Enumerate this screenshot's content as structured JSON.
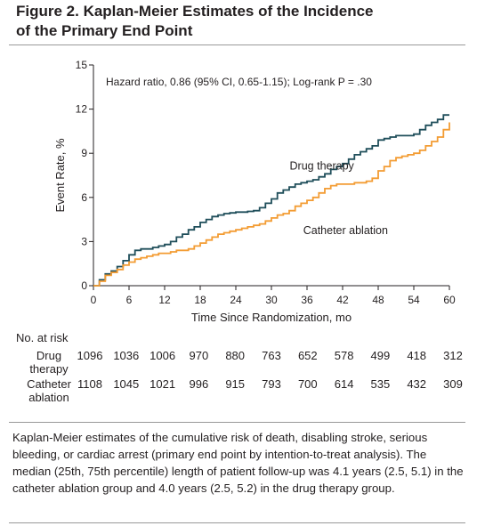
{
  "figure": {
    "title_line1": "Figure 2. Kaplan-Meier Estimates of the Incidence",
    "title_line2": "of the Primary End Point"
  },
  "chart_data": {
    "type": "line",
    "title": "",
    "xlabel": "Time Since Randomization, mo",
    "ylabel": "Event Rate, %",
    "xlim": [
      0,
      60
    ],
    "ylim": [
      0,
      15
    ],
    "x_ticks": [
      0,
      6,
      12,
      18,
      24,
      30,
      36,
      42,
      48,
      54,
      60
    ],
    "y_ticks": [
      0,
      3,
      6,
      9,
      12,
      15
    ],
    "annotation": "Hazard ratio, 0.86 (95% CI, 0.65-1.15); Log-rank P = .30",
    "grid": false,
    "series": [
      {
        "name": "Drug therapy",
        "color": "#1f4e5a",
        "x": [
          0,
          1,
          2,
          3,
          4,
          5,
          6,
          7,
          8,
          9,
          10,
          11,
          12,
          13,
          14,
          15,
          16,
          17,
          18,
          19,
          20,
          21,
          22,
          23,
          24,
          25,
          26,
          27,
          28,
          29,
          30,
          31,
          32,
          33,
          34,
          35,
          36,
          37,
          38,
          39,
          40,
          41,
          42,
          43,
          44,
          45,
          46,
          47,
          48,
          49,
          50,
          51,
          52,
          53,
          54,
          55,
          56,
          57,
          58,
          59,
          60
        ],
        "values": [
          0,
          0.4,
          0.8,
          1.0,
          1.3,
          1.7,
          2.1,
          2.4,
          2.5,
          2.5,
          2.6,
          2.7,
          2.8,
          3.0,
          3.3,
          3.5,
          3.8,
          4.0,
          4.3,
          4.5,
          4.7,
          4.8,
          4.9,
          4.95,
          5.0,
          5.0,
          5.05,
          5.1,
          5.3,
          5.6,
          5.9,
          6.3,
          6.5,
          6.7,
          6.9,
          7.0,
          7.1,
          7.2,
          7.4,
          7.6,
          7.9,
          8.1,
          8.3,
          8.6,
          8.9,
          9.1,
          9.3,
          9.5,
          9.9,
          10.0,
          10.1,
          10.2,
          10.2,
          10.2,
          10.3,
          10.6,
          10.9,
          11.1,
          11.3,
          11.6,
          11.6
        ]
      },
      {
        "name": "Catheter ablation",
        "color": "#f39c33",
        "x": [
          0,
          1,
          2,
          3,
          4,
          5,
          6,
          7,
          8,
          9,
          10,
          11,
          12,
          13,
          14,
          15,
          16,
          17,
          18,
          19,
          20,
          21,
          22,
          23,
          24,
          25,
          26,
          27,
          28,
          29,
          30,
          31,
          32,
          33,
          34,
          35,
          36,
          37,
          38,
          39,
          40,
          41,
          42,
          43,
          44,
          45,
          46,
          47,
          48,
          49,
          50,
          51,
          52,
          53,
          54,
          55,
          56,
          57,
          58,
          59,
          60
        ],
        "values": [
          0,
          0.3,
          0.7,
          0.9,
          1.1,
          1.4,
          1.6,
          1.8,
          1.9,
          2.0,
          2.1,
          2.2,
          2.2,
          2.3,
          2.4,
          2.4,
          2.5,
          2.7,
          2.9,
          3.1,
          3.3,
          3.5,
          3.6,
          3.7,
          3.8,
          3.9,
          4.0,
          4.1,
          4.2,
          4.4,
          4.6,
          4.8,
          4.9,
          5.1,
          5.4,
          5.6,
          5.8,
          6.0,
          6.3,
          6.6,
          6.8,
          6.9,
          6.9,
          6.9,
          7.0,
          7.0,
          7.1,
          7.3,
          7.8,
          8.1,
          8.5,
          8.7,
          8.8,
          8.9,
          9.0,
          9.2,
          9.5,
          9.8,
          10.1,
          10.6,
          11.1
        ]
      }
    ],
    "line_labels": [
      {
        "series": "Drug therapy",
        "text": "Drug therapy",
        "x": 38.5,
        "y": 7.9
      },
      {
        "series": "Catheter ablation",
        "text": "Catheter ablation",
        "x": 42.5,
        "y": 3.5
      }
    ]
  },
  "risk_table": {
    "title": "No. at risk",
    "months": [
      0,
      6,
      12,
      18,
      24,
      30,
      36,
      42,
      48,
      54,
      60
    ],
    "rows": [
      {
        "label_line1": "Drug",
        "label_line2": "therapy",
        "values": [
          "1096",
          "1036",
          "1006",
          "970",
          "880",
          "763",
          "652",
          "578",
          "499",
          "418",
          "312"
        ]
      },
      {
        "label_line1": "Catheter",
        "label_line2": "ablation",
        "values": [
          "1108",
          "1045",
          "1021",
          "996",
          "915",
          "793",
          "700",
          "614",
          "535",
          "432",
          "309"
        ]
      }
    ]
  },
  "caption": "Kaplan-Meier estimates of the cumulative risk of death, disabling stroke, serious bleeding, or cardiac arrest (primary end point by intention-to-treat analysis). The median (25th, 75th percentile) length of patient follow-up was 4.1 years (2.5, 5.1) in the catheter ablation group and 4.0 years (2.5, 5.2) in the drug therapy group."
}
